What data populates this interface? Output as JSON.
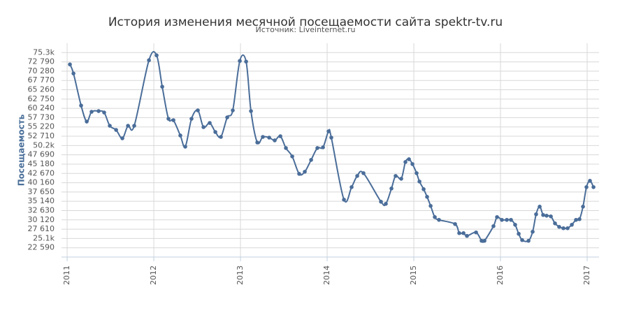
{
  "chart_data": {
    "type": "line",
    "title": "История изменения месячной посещаемости сайта spektr-tv.ru",
    "subtitle": "Источник: Liveinternet.ru",
    "y_label": "Посещаемость",
    "color": "#4a6d99",
    "grid": true,
    "x": [
      2011.032,
      2011.073,
      2011.161,
      2011.226,
      2011.282,
      2011.363,
      2011.427,
      2011.492,
      2011.565,
      2011.637,
      2011.702,
      2011.774,
      2011.944,
      2012.032,
      2012.097,
      2012.169,
      2012.226,
      2012.306,
      2012.363,
      2012.435,
      2012.508,
      2012.573,
      2012.645,
      2012.71,
      2012.774,
      2012.847,
      2012.911,
      2012.992,
      2013.065,
      2013.121,
      2013.194,
      2013.258,
      2013.331,
      2013.395,
      2013.46,
      2013.524,
      2013.597,
      2013.677,
      2013.742,
      2013.815,
      2013.887,
      2013.952,
      2014.016,
      2014.048,
      2014.194,
      2014.282,
      2014.347,
      2014.419,
      2014.621,
      2014.677,
      2014.742,
      2014.79,
      2014.855,
      2014.903,
      2014.944,
      2014.984,
      2015.032,
      2015.065,
      2015.113,
      2015.153,
      2015.194,
      2015.242,
      2015.29,
      2015.476,
      2015.524,
      2015.573,
      2015.613,
      2015.718,
      2015.782,
      2015.815,
      2015.919,
      2015.96,
      2016.016,
      2016.073,
      2016.121,
      2016.169,
      2016.21,
      2016.25,
      2016.323,
      2016.371,
      2016.411,
      2016.452,
      2016.492,
      2016.532,
      2016.581,
      2016.629,
      2016.677,
      2016.726,
      2016.774,
      2016.823,
      2016.871,
      2016.911,
      2016.952,
      2016.992,
      2017.032,
      2017.073
    ],
    "values": [
      72110,
      69670,
      61000,
      56670,
      59310,
      59500,
      59120,
      55540,
      54410,
      52150,
      55540,
      55540,
      73240,
      74560,
      66090,
      57430,
      57050,
      52910,
      49890,
      57430,
      59690,
      55170,
      56300,
      53850,
      52530,
      57800,
      59690,
      73050,
      72870,
      59500,
      51020,
      52530,
      52340,
      51590,
      52720,
      49520,
      47260,
      42550,
      43120,
      46320,
      49520,
      49710,
      54040,
      52340,
      35580,
      38970,
      41990,
      42740,
      35020,
      34450,
      38600,
      41990,
      41230,
      45750,
      46500,
      45190,
      42740,
      40480,
      38410,
      36340,
      33890,
      30880,
      30120,
      28990,
      26540,
      26540,
      25790,
      26730,
      24470,
      24470,
      28430,
      30880,
      30120,
      30120,
      30120,
      28800,
      26360,
      24660,
      24470,
      26920,
      31630,
      33700,
      31440,
      31250,
      31060,
      29180,
      28240,
      27860,
      27860,
      28800,
      30120,
      30310,
      33700,
      38970,
      40670,
      38970
    ],
    "xlim": [
      2010.935,
      2017.137
    ],
    "xticks": [
      2011,
      2012,
      2013,
      2014,
      2015,
      2016,
      2017
    ],
    "ylim": [
      20080,
      77810
    ],
    "yticks": [
      {
        "value": 22590,
        "label": "22 590"
      },
      {
        "value": 25100,
        "label": "25.1k"
      },
      {
        "value": 27610,
        "label": "27 610"
      },
      {
        "value": 30120,
        "label": "30 120"
      },
      {
        "value": 32630,
        "label": "32 630"
      },
      {
        "value": 35140,
        "label": "35 140"
      },
      {
        "value": 37650,
        "label": "37 650"
      },
      {
        "value": 40160,
        "label": "40 160"
      },
      {
        "value": 42670,
        "label": "42 670"
      },
      {
        "value": 45180,
        "label": "45 180"
      },
      {
        "value": 47690,
        "label": "47 690"
      },
      {
        "value": 50200,
        "label": "50.2k"
      },
      {
        "value": 52710,
        "label": "52 710"
      },
      {
        "value": 55220,
        "label": "55 220"
      },
      {
        "value": 57730,
        "label": "57 730"
      },
      {
        "value": 60240,
        "label": "60 240"
      },
      {
        "value": 62750,
        "label": "62 750"
      },
      {
        "value": 65260,
        "label": "65 260"
      },
      {
        "value": 67770,
        "label": "67 770"
      },
      {
        "value": 70280,
        "label": "70 280"
      },
      {
        "value": 72790,
        "label": "72 790"
      },
      {
        "value": 75300,
        "label": "75.3k"
      }
    ]
  }
}
